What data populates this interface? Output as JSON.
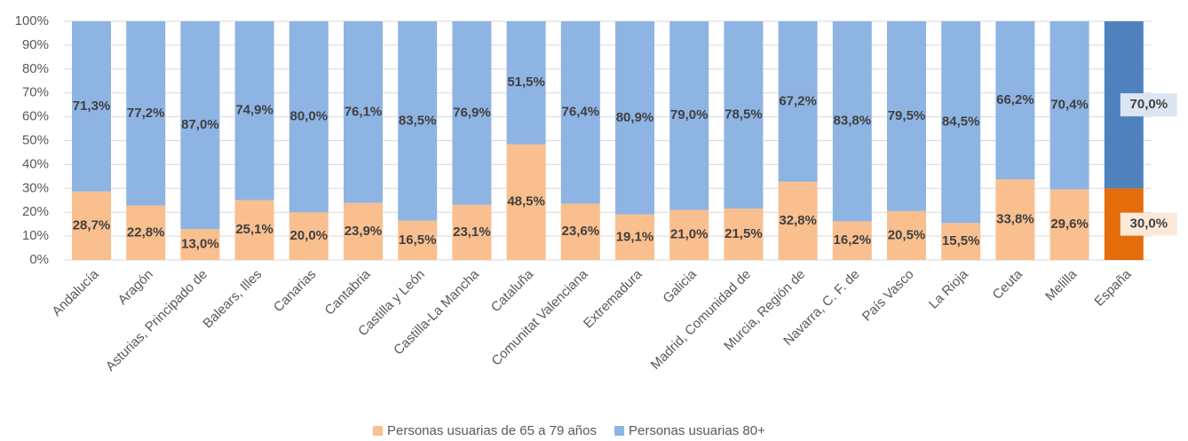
{
  "chart_data": {
    "type": "stacked_bar_percent",
    "categories": [
      "Andalucía",
      "Aragón",
      "Asturias, Principado de",
      "Balears, Illes",
      "Canarias",
      "Cantabria",
      "Castilla y León",
      "Castilla-La Mancha",
      "Cataluña",
      "Comunitat Valenciana",
      "Extremadura",
      "Galicia",
      "Madrid, Comunidad de",
      "Murcia, Región de",
      "Navarra, C. F. de",
      "País Vasco",
      "La Rioja",
      "Ceuta",
      "Melilla",
      "España"
    ],
    "series": [
      {
        "name": "Personas usuarias de 65 a 79 años",
        "color": "#f9bf8f",
        "colors": [
          "#f9bf8f",
          "#f9bf8f",
          "#f9bf8f",
          "#f9bf8f",
          "#f9bf8f",
          "#f9bf8f",
          "#f9bf8f",
          "#f9bf8f",
          "#f9bf8f",
          "#f9bf8f",
          "#f9bf8f",
          "#f9bf8f",
          "#f9bf8f",
          "#f9bf8f",
          "#f9bf8f",
          "#f9bf8f",
          "#f9bf8f",
          "#f9bf8f",
          "#f9bf8f",
          "#e46c0a"
        ],
        "values": [
          28.7,
          22.8,
          13.0,
          25.1,
          20.0,
          23.9,
          16.5,
          23.1,
          48.5,
          23.6,
          19.1,
          21.0,
          21.5,
          32.8,
          16.2,
          20.5,
          15.5,
          33.8,
          29.6,
          30.0
        ],
        "value_labels": [
          "28,7%",
          "22,8%",
          "13,0%",
          "25,1%",
          "20,0%",
          "23,9%",
          "16,5%",
          "23,1%",
          "48,5%",
          "23,6%",
          "19,1%",
          "21,0%",
          "21,5%",
          "32,8%",
          "16,2%",
          "20,5%",
          "15,5%",
          "33,8%",
          "29,6%",
          "30,0%"
        ]
      },
      {
        "name": "Personas usuarias 80+",
        "color": "#8eb4e3",
        "colors": [
          "#8eb4e3",
          "#8eb4e3",
          "#8eb4e3",
          "#8eb4e3",
          "#8eb4e3",
          "#8eb4e3",
          "#8eb4e3",
          "#8eb4e3",
          "#8eb4e3",
          "#8eb4e3",
          "#8eb4e3",
          "#8eb4e3",
          "#8eb4e3",
          "#8eb4e3",
          "#8eb4e3",
          "#8eb4e3",
          "#8eb4e3",
          "#8eb4e3",
          "#8eb4e3",
          "#4f81bd"
        ],
        "values": [
          71.3,
          77.2,
          87.0,
          74.9,
          80.0,
          76.1,
          83.5,
          76.9,
          51.5,
          76.4,
          80.9,
          79.0,
          78.5,
          67.2,
          83.8,
          79.5,
          84.5,
          66.2,
          70.4,
          70.0
        ],
        "value_labels": [
          "71,3%",
          "77,2%",
          "87,0%",
          "74,9%",
          "80,0%",
          "76,1%",
          "83,5%",
          "76,9%",
          "51,5%",
          "76,4%",
          "80,9%",
          "79,0%",
          "78,5%",
          "67,2%",
          "83,8%",
          "79,5%",
          "84,5%",
          "66,2%",
          "70,4%",
          "70,0%"
        ]
      }
    ],
    "ylim": [
      0,
      100
    ],
    "yticks": [
      {
        "value": 0,
        "label": "0%"
      },
      {
        "value": 10,
        "label": "10%"
      },
      {
        "value": 20,
        "label": "20%"
      },
      {
        "value": 30,
        "label": "30%"
      },
      {
        "value": 40,
        "label": "40%"
      },
      {
        "value": 50,
        "label": "50%"
      },
      {
        "value": 60,
        "label": "60%"
      },
      {
        "value": 70,
        "label": "70%"
      },
      {
        "value": 80,
        "label": "80%"
      },
      {
        "value": 90,
        "label": "90%"
      },
      {
        "value": 100,
        "label": "100%"
      }
    ],
    "grid": true,
    "legend": "bottom"
  }
}
